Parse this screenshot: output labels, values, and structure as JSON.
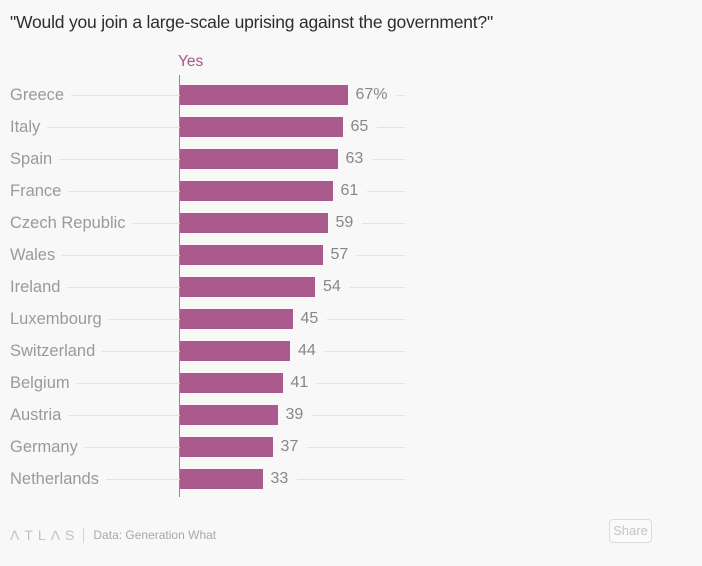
{
  "title": "\"Would you join a large-scale uprising against the government?\"",
  "chart_data": {
    "type": "bar",
    "orientation": "horizontal",
    "title": "\"Would you join a large-scale uprising against the government?\"",
    "series_label": "Yes",
    "categories": [
      "Greece",
      "Italy",
      "Spain",
      "France",
      "Czech Republic",
      "Wales",
      "Ireland",
      "Luxembourg",
      "Switzerland",
      "Belgium",
      "Austria",
      "Germany",
      "Netherlands"
    ],
    "values": [
      67,
      65,
      63,
      61,
      59,
      57,
      54,
      45,
      44,
      41,
      39,
      37,
      33
    ],
    "value_labels": [
      "67%",
      "65",
      "63",
      "61",
      "59",
      "57",
      "54",
      "45",
      "44",
      "41",
      "39",
      "37",
      "33"
    ],
    "xlim": [
      0,
      90
    ],
    "unit": "%",
    "grid": "row-leader-lines",
    "bar_color": "#aa5a8c",
    "series_label_color": "#a9568c",
    "axis_color": "#8c8c8c",
    "gridline_color": "#e3e3e3",
    "label_color": "#9a9a9a",
    "value_color": "#85878a"
  },
  "footer": {
    "logo_text": "ΛTLΛS",
    "source_text": "Data:  Generation What",
    "share_label": "Share"
  }
}
